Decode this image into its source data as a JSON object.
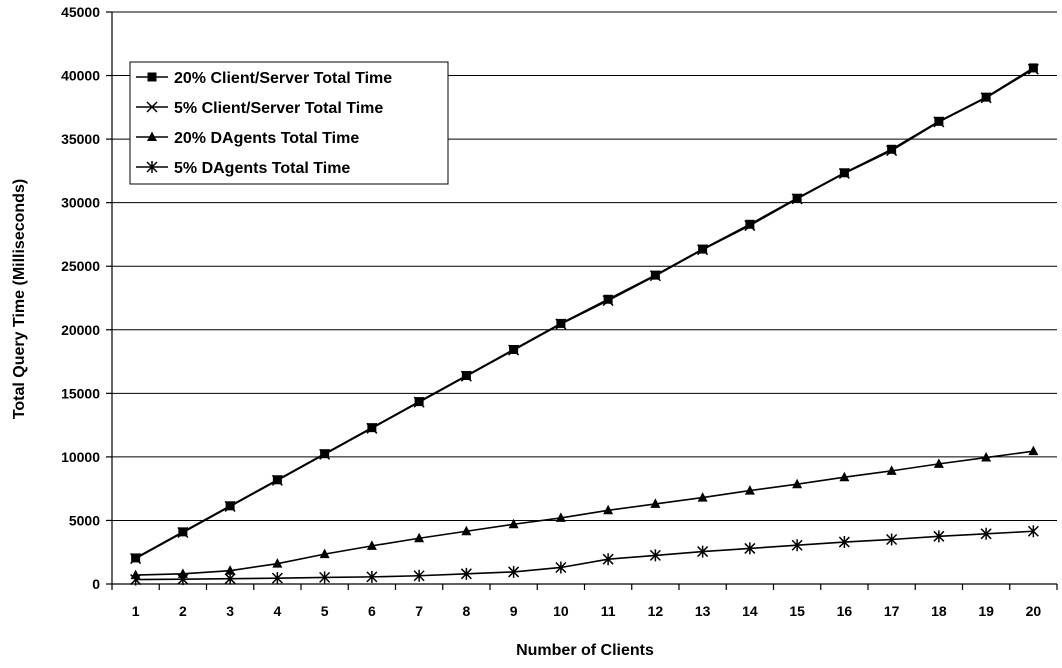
{
  "chart_data": {
    "type": "line",
    "xlabel": "Number of Clients",
    "ylabel": "Total Query Time (Milliseconds)",
    "x": [
      1,
      2,
      3,
      4,
      5,
      6,
      7,
      8,
      9,
      10,
      11,
      12,
      13,
      14,
      15,
      16,
      17,
      18,
      19,
      20
    ],
    "ylim": [
      0,
      45000
    ],
    "yticks": [
      0,
      5000,
      10000,
      15000,
      20000,
      25000,
      30000,
      35000,
      40000,
      45000
    ],
    "grid": "horizontal",
    "legend_position": "top-left",
    "series": [
      {
        "name": "20% Client/Server Total Time",
        "marker": "square",
        "values": [
          2050,
          4100,
          6150,
          8200,
          10250,
          12300,
          14350,
          16400,
          18450,
          20500,
          22400,
          24300,
          26350,
          28300,
          30350,
          32350,
          34200,
          36400,
          38300,
          40600
        ]
      },
      {
        "name": "5% Client/Server Total Time",
        "marker": "x",
        "values": [
          2000,
          4050,
          6100,
          8150,
          10200,
          12250,
          14300,
          16350,
          18400,
          20450,
          22300,
          24250,
          26300,
          28200,
          30300,
          32300,
          34100,
          36350,
          38250,
          40500
        ]
      },
      {
        "name": "20% DAgents Total Time",
        "marker": "triangle",
        "values": [
          700,
          800,
          1050,
          1600,
          2350,
          3000,
          3600,
          4150,
          4700,
          5200,
          5800,
          6300,
          6800,
          7350,
          7850,
          8400,
          8900,
          9450,
          9950,
          10450
        ]
      },
      {
        "name": "5% DAgents Total Time",
        "marker": "asterisk",
        "values": [
          350,
          380,
          420,
          460,
          520,
          560,
          650,
          800,
          950,
          1300,
          1950,
          2250,
          2550,
          2800,
          3050,
          3300,
          3500,
          3750,
          3950,
          4150
        ]
      }
    ]
  }
}
